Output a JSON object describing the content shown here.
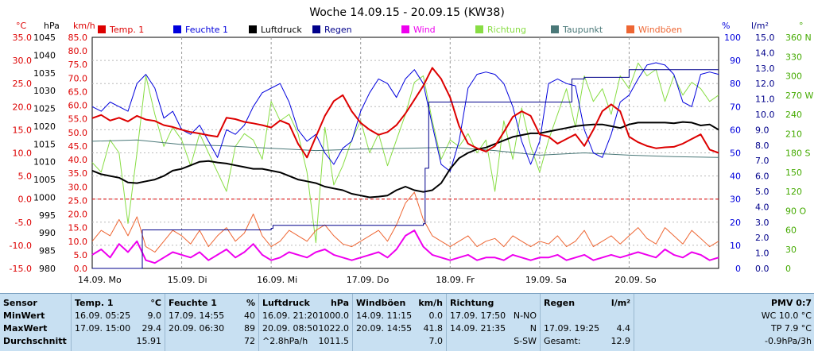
{
  "title": "Woche 14.09.15 - 20.09.15 (KW38)",
  "legend": [
    {
      "label": "Temp. 1",
      "color": "#dd0000"
    },
    {
      "label": "Feuchte 1",
      "color": "#0000dd"
    },
    {
      "label": "Luftdruck",
      "color": "#000000"
    },
    {
      "label": "Regen",
      "color": "#00008b"
    },
    {
      "label": "Wind",
      "color": "#ee00ee"
    },
    {
      "label": "Richtung",
      "color": "#88dd44"
    },
    {
      "label": "Taupunkt",
      "color": "#4a7878"
    },
    {
      "label": "Windböen",
      "color": "#ee6633"
    }
  ],
  "axes": {
    "temp": {
      "unit": "°C",
      "color": "#dd0000",
      "ticks": [
        "35.0",
        "30.0",
        "25.0",
        "20.0",
        "15.0",
        "10.0",
        "5.0",
        "0.0",
        "-5.0",
        "-10.0",
        "-15.0"
      ]
    },
    "pressure": {
      "unit": "hPa",
      "color": "#000000",
      "ticks": [
        "1045",
        "1040",
        "1035",
        "1030",
        "1025",
        "1020",
        "1015",
        "1010",
        "1005",
        "1000",
        "995",
        "990",
        "985",
        "980"
      ]
    },
    "wind": {
      "unit": "km/h",
      "color": "#dd0000",
      "ticks": [
        "85.0",
        "80.0",
        "75.0",
        "70.0",
        "65.0",
        "60.0",
        "55.0",
        "50.0",
        "45.0",
        "40.0",
        "35.0",
        "30.0",
        "25.0",
        "20.0",
        "15.0",
        "10.0",
        "5.0",
        "0.0"
      ]
    },
    "humidity": {
      "unit": "%",
      "color": "#0000dd",
      "ticks": [
        "100",
        "90",
        "80",
        "70",
        "60",
        "50",
        "40",
        "30",
        "20",
        "10",
        "0"
      ]
    },
    "rain": {
      "unit": "l/m²",
      "color": "#00008b",
      "ticks": [
        "15.0",
        "14.0",
        "13.0",
        "12.0",
        "11.0",
        "10.0",
        "9.0",
        "8.0",
        "7.0",
        "6.0",
        "5.0",
        "4.0",
        "3.0",
        "2.0",
        "1.0",
        "0.0"
      ]
    },
    "direction": {
      "unit": "°",
      "color": "#44aa00",
      "ticks": [
        "360 N",
        "330",
        "300",
        "270 W",
        "240",
        "210",
        "180 S",
        "150",
        "120",
        "90 O",
        "60",
        "30",
        "0"
      ]
    }
  },
  "chart_data": {
    "type": "line",
    "title": "Woche 14.09.15 - 20.09.15 (KW38)",
    "x_ticks": [
      "14.09.  Mo",
      "15.09.  Di",
      "16.09.  Mi",
      "17.09.  Do",
      "18.09.  Fr",
      "19.09.  Sa",
      "20.09.  So"
    ],
    "xlim_days": [
      0,
      7
    ],
    "grid": true,
    "legend_position": "top",
    "series": [
      {
        "name": "Temp. 1",
        "axis": "temp",
        "color": "#dd0000",
        "x": [
          0,
          0.1,
          0.2,
          0.3,
          0.4,
          0.5,
          0.6,
          0.7,
          0.8,
          0.9,
          1.0,
          1.1,
          1.2,
          1.3,
          1.4,
          1.5,
          1.6,
          1.7,
          1.8,
          1.9,
          2.0,
          2.1,
          2.2,
          2.3,
          2.4,
          2.5,
          2.6,
          2.7,
          2.8,
          2.9,
          3.0,
          3.1,
          3.2,
          3.3,
          3.4,
          3.5,
          3.6,
          3.7,
          3.8,
          3.9,
          4.0,
          4.1,
          4.2,
          4.3,
          4.4,
          4.5,
          4.6,
          4.7,
          4.8,
          4.9,
          5.0,
          5.1,
          5.2,
          5.3,
          5.4,
          5.5,
          5.6,
          5.7,
          5.8,
          5.9,
          6.0,
          6.1,
          6.2,
          6.3,
          6.4,
          6.5,
          6.6,
          6.7,
          6.8,
          6.9,
          7.0
        ],
        "y": [
          17.5,
          18.2,
          17.0,
          17.6,
          16.8,
          18.0,
          17.2,
          16.9,
          16.0,
          15.6,
          15.0,
          14.5,
          14.2,
          13.8,
          13.5,
          17.6,
          17.3,
          16.7,
          16.4,
          16.0,
          15.5,
          17.0,
          16.2,
          12.0,
          9.0,
          13.5,
          18.0,
          21.2,
          22.5,
          19.0,
          16.5,
          15.0,
          13.9,
          14.5,
          16.0,
          18.5,
          21.5,
          24.5,
          28.4,
          26.0,
          22.0,
          15.8,
          12.0,
          11.0,
          10.3,
          11.5,
          14.5,
          17.8,
          19.0,
          18.0,
          14.0,
          13.5,
          12.0,
          13.0,
          14.0,
          11.5,
          15.0,
          19.0,
          20.5,
          19.0,
          13.5,
          12.3,
          11.5,
          11.0,
          11.2,
          11.3,
          12.0,
          13.0,
          14.0,
          10.7,
          10.0
        ]
      },
      {
        "name": "Feuchte 1",
        "axis": "humidity",
        "color": "#0000dd",
        "x": [
          0,
          0.1,
          0.2,
          0.3,
          0.4,
          0.5,
          0.6,
          0.7,
          0.8,
          0.9,
          1.0,
          1.1,
          1.2,
          1.3,
          1.4,
          1.5,
          1.6,
          1.7,
          1.8,
          1.9,
          2.0,
          2.1,
          2.2,
          2.3,
          2.4,
          2.5,
          2.6,
          2.7,
          2.8,
          2.9,
          3.0,
          3.1,
          3.2,
          3.3,
          3.4,
          3.5,
          3.6,
          3.7,
          3.8,
          3.9,
          4.0,
          4.1,
          4.2,
          4.3,
          4.4,
          4.5,
          4.6,
          4.7,
          4.8,
          4.9,
          5.0,
          5.1,
          5.2,
          5.3,
          5.4,
          5.5,
          5.6,
          5.7,
          5.8,
          5.9,
          6.0,
          6.1,
          6.2,
          6.3,
          6.4,
          6.5,
          6.6,
          6.7,
          6.8,
          6.9,
          7.0
        ],
        "y": [
          70,
          68,
          72,
          70,
          68,
          80,
          84,
          78,
          65,
          68,
          60,
          58,
          62,
          55,
          48,
          60,
          58,
          62,
          70,
          76,
          78,
          80,
          72,
          60,
          55,
          58,
          50,
          45,
          52,
          55,
          68,
          76,
          82,
          80,
          74,
          82,
          86,
          80,
          62,
          45,
          42,
          55,
          78,
          84,
          85,
          84,
          80,
          70,
          55,
          45,
          55,
          80,
          82,
          80,
          79,
          60,
          50,
          48,
          58,
          72,
          75,
          82,
          88,
          89,
          88,
          84,
          72,
          70,
          84,
          85,
          84
        ]
      },
      {
        "name": "Luftdruck",
        "axis": "pressure",
        "color": "#000000",
        "x": [
          0,
          0.1,
          0.2,
          0.3,
          0.4,
          0.5,
          0.6,
          0.7,
          0.8,
          0.9,
          1.0,
          1.1,
          1.2,
          1.3,
          1.4,
          1.5,
          1.6,
          1.7,
          1.8,
          1.9,
          2.0,
          2.1,
          2.2,
          2.3,
          2.4,
          2.5,
          2.6,
          2.7,
          2.8,
          2.9,
          3.0,
          3.1,
          3.2,
          3.3,
          3.4,
          3.5,
          3.6,
          3.7,
          3.8,
          3.9,
          4.0,
          4.1,
          4.2,
          4.3,
          4.4,
          4.5,
          4.6,
          4.7,
          4.8,
          4.9,
          5.0,
          5.1,
          5.2,
          5.3,
          5.4,
          5.5,
          5.6,
          5.7,
          5.8,
          5.9,
          6.0,
          6.1,
          6.2,
          6.3,
          6.4,
          6.5,
          6.6,
          6.7,
          6.8,
          6.9,
          7.0
        ],
        "y": [
          1007.5,
          1006.5,
          1006.0,
          1005.5,
          1004.2,
          1004.0,
          1004.5,
          1005.0,
          1006.0,
          1007.5,
          1008.0,
          1009.0,
          1010.0,
          1010.2,
          1009.8,
          1009.5,
          1009.0,
          1008.5,
          1008.0,
          1008.0,
          1007.5,
          1007.0,
          1006.0,
          1005.0,
          1004.5,
          1004.0,
          1003.0,
          1002.5,
          1002.0,
          1001.0,
          1000.5,
          1000.0,
          1000.2,
          1000.5,
          1002.0,
          1003.0,
          1002.0,
          1001.5,
          1002.0,
          1004.0,
          1008.0,
          1011.0,
          1012.5,
          1013.5,
          1014.0,
          1015.0,
          1016.0,
          1017.0,
          1017.5,
          1018.0,
          1018.0,
          1018.5,
          1019.0,
          1019.5,
          1020.0,
          1020.3,
          1020.5,
          1020.5,
          1020.0,
          1019.5,
          1020.5,
          1021.0,
          1021.0,
          1021.0,
          1021.0,
          1020.8,
          1021.2,
          1021.0,
          1020.2,
          1020.5,
          1019.0
        ]
      },
      {
        "name": "Taupunkt",
        "axis": "temp",
        "color": "#4a7878",
        "x": [
          0,
          0.5,
          1.0,
          1.5,
          2.0,
          2.5,
          3.0,
          3.5,
          4.0,
          4.5,
          5.0,
          5.5,
          6.0,
          6.5,
          7.0
        ],
        "y": [
          12.5,
          12.8,
          11.8,
          11.5,
          11.0,
          10.5,
          10.8,
          11.0,
          11.2,
          10.5,
          9.5,
          10.0,
          9.5,
          9.2,
          9.0
        ]
      },
      {
        "name": "Wind",
        "axis": "wind",
        "color": "#ee00ee",
        "x": [
          0,
          0.1,
          0.2,
          0.3,
          0.4,
          0.5,
          0.6,
          0.7,
          0.8,
          0.9,
          1.0,
          1.1,
          1.2,
          1.3,
          1.4,
          1.5,
          1.6,
          1.7,
          1.8,
          1.9,
          2.0,
          2.1,
          2.2,
          2.3,
          2.4,
          2.5,
          2.6,
          2.7,
          2.8,
          2.9,
          3.0,
          3.1,
          3.2,
          3.3,
          3.4,
          3.5,
          3.6,
          3.7,
          3.8,
          3.9,
          4.0,
          4.1,
          4.2,
          4.3,
          4.4,
          4.5,
          4.6,
          4.7,
          4.8,
          4.9,
          5.0,
          5.1,
          5.2,
          5.3,
          5.4,
          5.5,
          5.6,
          5.7,
          5.8,
          5.9,
          6.0,
          6.1,
          6.2,
          6.3,
          6.4,
          6.5,
          6.6,
          6.7,
          6.8,
          6.9,
          7.0
        ],
        "y": [
          5,
          7,
          4,
          9,
          6,
          10,
          3,
          2,
          4,
          6,
          5,
          4,
          6,
          3,
          5,
          7,
          4,
          6,
          9,
          5,
          3,
          4,
          6,
          5,
          4,
          6,
          7,
          5,
          4,
          3,
          4,
          5,
          6,
          4,
          7,
          12,
          14,
          8,
          5,
          4,
          3,
          4,
          5,
          3,
          4,
          4,
          3,
          5,
          4,
          3,
          4,
          4,
          5,
          3,
          4,
          5,
          3,
          4,
          5,
          4,
          5,
          6,
          5,
          4,
          7,
          5,
          4,
          6,
          5,
          3,
          4
        ]
      },
      {
        "name": "Windböen",
        "axis": "wind",
        "color": "#ee6633",
        "x": [
          0,
          0.1,
          0.2,
          0.3,
          0.4,
          0.5,
          0.6,
          0.7,
          0.8,
          0.9,
          1.0,
          1.1,
          1.2,
          1.3,
          1.4,
          1.5,
          1.6,
          1.7,
          1.8,
          1.9,
          2.0,
          2.1,
          2.2,
          2.3,
          2.4,
          2.5,
          2.6,
          2.7,
          2.8,
          2.9,
          3.0,
          3.1,
          3.2,
          3.3,
          3.4,
          3.5,
          3.6,
          3.7,
          3.8,
          3.9,
          4.0,
          4.1,
          4.2,
          4.3,
          4.4,
          4.5,
          4.6,
          4.7,
          4.8,
          4.9,
          5.0,
          5.1,
          5.2,
          5.3,
          5.4,
          5.5,
          5.6,
          5.7,
          5.8,
          5.9,
          6.0,
          6.1,
          6.2,
          6.3,
          6.4,
          6.5,
          6.6,
          6.7,
          6.8,
          6.9,
          7.0
        ],
        "y": [
          10,
          14,
          12,
          18,
          12,
          19,
          8,
          6,
          10,
          14,
          12,
          9,
          14,
          8,
          12,
          15,
          10,
          13,
          20,
          12,
          8,
          10,
          14,
          12,
          10,
          14,
          16,
          12,
          9,
          8,
          10,
          12,
          14,
          10,
          16,
          24,
          28,
          18,
          12,
          10,
          8,
          10,
          12,
          8,
          10,
          11,
          8,
          12,
          10,
          8,
          10,
          9,
          12,
          8,
          10,
          14,
          8,
          10,
          12,
          9,
          12,
          15,
          11,
          9,
          15,
          12,
          9,
          14,
          11,
          8,
          10
        ]
      },
      {
        "name": "Richtung",
        "axis": "direction",
        "color": "#88dd44",
        "x": [
          0,
          0.1,
          0.2,
          0.3,
          0.4,
          0.5,
          0.6,
          0.7,
          0.8,
          0.9,
          1.0,
          1.1,
          1.2,
          1.3,
          1.4,
          1.5,
          1.6,
          1.7,
          1.8,
          1.9,
          2.0,
          2.1,
          2.2,
          2.3,
          2.4,
          2.5,
          2.6,
          2.7,
          2.8,
          2.9,
          3.0,
          3.1,
          3.2,
          3.3,
          3.4,
          3.5,
          3.6,
          3.7,
          3.8,
          3.9,
          4.0,
          4.1,
          4.2,
          4.3,
          4.4,
          4.5,
          4.6,
          4.7,
          4.8,
          4.9,
          5.0,
          5.1,
          5.2,
          5.3,
          5.4,
          5.5,
          5.6,
          5.7,
          5.8,
          5.9,
          6.0,
          6.1,
          6.2,
          6.3,
          6.4,
          6.5,
          6.6,
          6.7,
          6.8,
          6.9,
          7.0
        ],
        "y": [
          165,
          150,
          200,
          180,
          70,
          180,
          300,
          240,
          190,
          220,
          200,
          160,
          210,
          180,
          150,
          120,
          190,
          210,
          200,
          170,
          260,
          230,
          240,
          210,
          150,
          40,
          220,
          130,
          160,
          200,
          230,
          180,
          210,
          160,
          200,
          240,
          290,
          300,
          230,
          170,
          200,
          190,
          210,
          180,
          200,
          120,
          230,
          170,
          250,
          190,
          150,
          200,
          240,
          280,
          220,
          300,
          260,
          280,
          240,
          300,
          280,
          320,
          300,
          310,
          260,
          300,
          270,
          290,
          280,
          260,
          270
        ]
      },
      {
        "name": "Regen",
        "axis": "rain",
        "color": "#00008b",
        "x": [
          0,
          0.55,
          0.56,
          1.0,
          2.0,
          2.02,
          3.0,
          3.7,
          3.72,
          3.76,
          4.0,
          5.0,
          5.36,
          5.5,
          6.0,
          7.0
        ],
        "y": [
          0,
          0,
          2.5,
          2.5,
          2.6,
          2.8,
          2.8,
          2.9,
          6.5,
          10.8,
          10.8,
          10.8,
          12.3,
          12.4,
          12.9,
          12.9
        ]
      }
    ]
  },
  "stats": {
    "sensor": {
      "header": "Sensor",
      "min": "MinWert",
      "max": "MaxWert",
      "avg": "Durchschnitt"
    },
    "temp": {
      "header": "Temp. 1",
      "unit": "°C",
      "min_time": "16.09.  05:25",
      "min_val": "9.0",
      "max_time": "17.09.  15:00",
      "max_val": "29.4",
      "avg": "15.91"
    },
    "humidity": {
      "header": "Feuchte 1",
      "unit": "%",
      "min_time": "17.09.  14:55",
      "min_val": "40",
      "max_time": "20.09.  06:30",
      "max_val": "89",
      "avg": "72"
    },
    "pressure": {
      "header": "Luftdruck",
      "unit": "hPa",
      "min_time": "16.09.  21:20",
      "min_val": "1000.0",
      "max_time": "20.09.  08:50",
      "max_val": "1022.0",
      "trend": "^2.8hPa/h",
      "avg": "1011.5"
    },
    "gusts": {
      "header": "Windböen",
      "unit": "km/h",
      "min_time": "14.09.  11:15",
      "min_val": "0.0",
      "max_time": "20.09.  14:55",
      "max_val": "41.8",
      "avg": "7.0"
    },
    "direction": {
      "header": "Richtung",
      "min_time": "17.09.  17:50",
      "min_val": "N-NO",
      "max_time": "14.09.  21:35",
      "max_val": "N",
      "avg": "S-SW"
    },
    "rain": {
      "header": "Regen",
      "unit": "l/m²",
      "max_time": "17.09.  19:25",
      "max_val": "4.4",
      "total_label": "Gesamt:",
      "total_val": "12.9"
    },
    "pmv": {
      "header": "PMV 0:7",
      "wc": "WC 10.0 °C",
      "tp": "TP 7.9 °C",
      "trend": "-0.9hPa/3h"
    }
  }
}
